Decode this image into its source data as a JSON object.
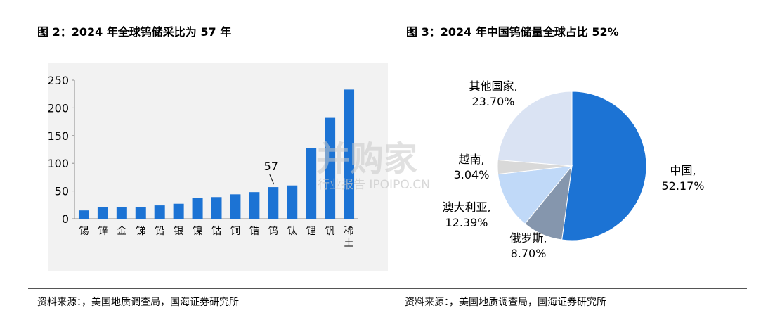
{
  "left": {
    "title": "图 2：2024 年全球钨储采比为 57 年",
    "source": "资料来源：，美国地质调查局，国海证券研究所"
  },
  "right": {
    "title": "图 3：2024 年中国钨储量全球占比 52%",
    "source": "资料来源：，美国地质调查局，国海证券研究所"
  },
  "watermark": {
    "main": "并购家",
    "sub": "行业报告 IPOIPO.CN"
  },
  "colors": {
    "bar": "#1c73d4",
    "china": "#1c73d4",
    "russia": "#8596ad",
    "australia": "#c0d9f8",
    "vietnam": "#d9d9d9",
    "others": "#dae3f3"
  },
  "chart_data": [
    {
      "type": "bar",
      "categories": [
        "锡",
        "锌",
        "金",
        "锑",
        "铅",
        "银",
        "镍",
        "钴",
        "铜",
        "锆",
        "钨",
        "钛",
        "锂",
        "钒",
        "稀土"
      ],
      "values": [
        15,
        21,
        21,
        21,
        24,
        27,
        37,
        39,
        44,
        48,
        57,
        60,
        127,
        182,
        233
      ],
      "ylim": [
        0,
        250
      ],
      "yticks": [
        0,
        50,
        100,
        150,
        200,
        250
      ],
      "annotations": [
        {
          "category": "钨",
          "text": "57"
        }
      ]
    },
    {
      "type": "pie",
      "slices": [
        {
          "label": "中国,",
          "value": 52.17,
          "display": "52.17%"
        },
        {
          "label": "俄罗斯,",
          "value": 8.7,
          "display": "8.70%"
        },
        {
          "label": "澳大利亚,",
          "value": 12.39,
          "display": "12.39%"
        },
        {
          "label": "越南,",
          "value": 3.04,
          "display": "3.04%"
        },
        {
          "label": "其他国家,",
          "value": 23.7,
          "display": "23.70%"
        }
      ]
    }
  ]
}
